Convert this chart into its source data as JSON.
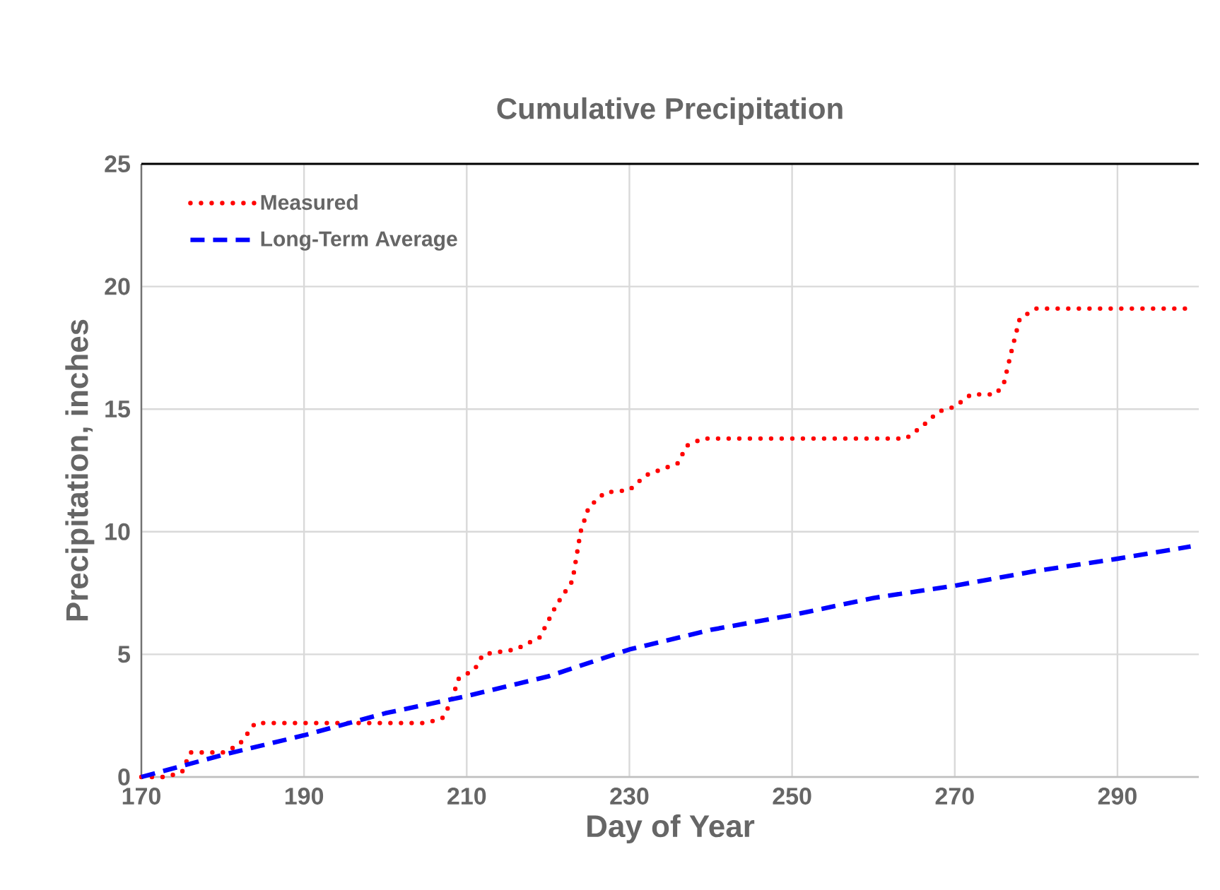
{
  "chart_data": {
    "type": "line",
    "title": "Cumulative Precipitation",
    "xlabel": "Day of Year",
    "ylabel": "Precipitation, inches",
    "xlim": [
      170,
      300
    ],
    "xticks": [
      170,
      190,
      210,
      230,
      250,
      270,
      290
    ],
    "ylim": [
      0,
      25
    ],
    "yticks": [
      0,
      5,
      10,
      15,
      20,
      25
    ],
    "grid": true,
    "legend": "top left",
    "series": [
      {
        "name": "Measured",
        "color": "#ff0000",
        "line_style": "dotted",
        "x": [
          170,
          173,
          175,
          176,
          180,
          182,
          184,
          188,
          205,
          207,
          208,
          209,
          211,
          212,
          216,
          219,
          221,
          223,
          224,
          225,
          227,
          230,
          232,
          236,
          237,
          239,
          264,
          266,
          268,
          270,
          272,
          275,
          276,
          277,
          278,
          280,
          299
        ],
        "values": [
          0,
          0,
          0.2,
          1.0,
          1.0,
          1.3,
          2.2,
          2.2,
          2.2,
          2.4,
          3.0,
          4.0,
          4.4,
          5.0,
          5.2,
          5.7,
          7.0,
          8.0,
          10.0,
          11.0,
          11.6,
          11.7,
          12.3,
          12.8,
          13.5,
          13.8,
          13.8,
          14.3,
          14.9,
          15.1,
          15.6,
          15.6,
          16.0,
          17.4,
          18.7,
          19.1,
          19.1
        ]
      },
      {
        "name": "Long-Term Average",
        "color": "#0000ff",
        "line_style": "dashed",
        "x": [
          170,
          180,
          190,
          200,
          210,
          220,
          230,
          240,
          250,
          260,
          270,
          280,
          290,
          299
        ],
        "values": [
          0,
          0.9,
          1.7,
          2.6,
          3.3,
          4.1,
          5.2,
          6.0,
          6.6,
          7.3,
          7.8,
          8.4,
          8.9,
          9.4
        ]
      }
    ]
  }
}
